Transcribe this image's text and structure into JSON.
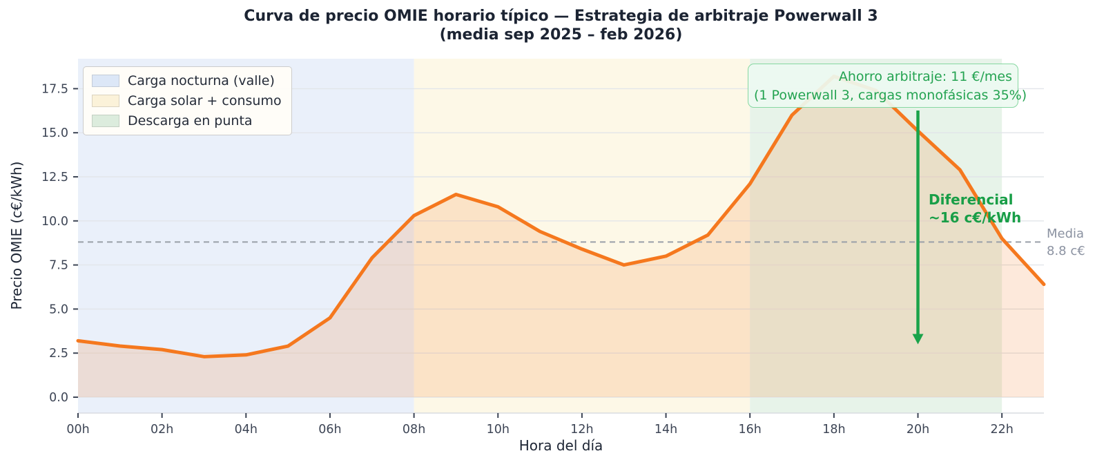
{
  "chart_data": {
    "type": "area",
    "title_line1": "Curva de precio OMIE horario típico — Estrategia de arbitraje Powerwall 3",
    "title_line2": "(media sep 2025 – feb 2026)",
    "xlabel": "Hora del día",
    "ylabel": "Precio OMIE (c€/kWh)",
    "x_hours": [
      0,
      1,
      2,
      3,
      4,
      5,
      6,
      7,
      8,
      9,
      10,
      11,
      12,
      13,
      14,
      15,
      16,
      17,
      18,
      19,
      20,
      21,
      22,
      23
    ],
    "values": [
      3.2,
      2.9,
      2.7,
      2.3,
      2.4,
      2.9,
      4.5,
      7.9,
      10.3,
      11.5,
      10.8,
      9.4,
      8.4,
      7.5,
      8.0,
      9.2,
      12.1,
      16.0,
      18.2,
      17.4,
      15.1,
      12.9,
      9.0,
      6.4
    ],
    "mean": 8.8,
    "xlim": [
      0,
      23
    ],
    "ylim": [
      -0.9,
      19.2
    ],
    "yticks": [
      0,
      2.5,
      5,
      7.5,
      10,
      12.5,
      15,
      17.5
    ],
    "ytick_labels": [
      "0.0",
      "2.5",
      "5.0",
      "7.5",
      "10.0",
      "12.5",
      "15.0",
      "17.5"
    ],
    "xtick_hours": [
      0,
      2,
      4,
      6,
      8,
      10,
      12,
      14,
      16,
      18,
      20,
      22
    ],
    "xtick_labels": [
      "00h",
      "02h",
      "04h",
      "06h",
      "08h",
      "10h",
      "12h",
      "14h",
      "16h",
      "18h",
      "20h",
      "22h"
    ],
    "grid": "horizontal",
    "legend_position": "upper-left",
    "line_color": "#f5781e",
    "line_width": 5,
    "fill_color_rgba": "rgba(245,120,30,0.16)",
    "mean_line_color": "#999fa8",
    "gridline_color": "#e2e5e9",
    "tick_color": "#3d4555",
    "spine_color": "#d9dce1",
    "bands": [
      {
        "name": "Carga nocturna (valle)",
        "from_hour": 0,
        "to_hour": 8,
        "color": "#eaf0fa"
      },
      {
        "name": "Carga solar + consumo",
        "from_hour": 8,
        "to_hour": 16,
        "color": "#fdf8e7"
      },
      {
        "name": "Descarga en punta",
        "from_hour": 16,
        "to_hour": 22,
        "color": "#e7f3e9"
      }
    ],
    "arrow": {
      "x_hour": 20,
      "points_to_value": 3.0,
      "color": "#1aa34a"
    }
  },
  "legend": {
    "items": [
      {
        "label": "Carga nocturna (valle)",
        "color": "#dce7f7"
      },
      {
        "label": "Carga solar + consumo",
        "color": "#fbf2d9"
      },
      {
        "label": "Descarga en punta",
        "color": "#dcecdd"
      }
    ]
  },
  "annotations": {
    "savings": {
      "line1": "Ahorro arbitraje: 11 €/mes",
      "line2": "(1 Powerwall 3, cargas monofásicas 35%)"
    },
    "differential": {
      "line1": "Diferencial",
      "line2": "~16 c€/kWh"
    },
    "mean_label": {
      "line1": "Media",
      "line2": "8.8 c€"
    }
  }
}
